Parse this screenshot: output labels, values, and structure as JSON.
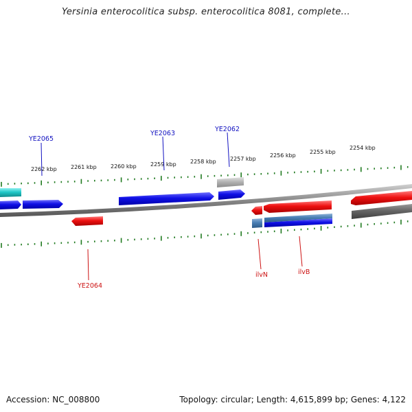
{
  "title": "Yersinia enterocolitica subsp. enterocolitica 8081, complete...",
  "footer": {
    "accession": "Accession: NC_008800",
    "summary": "Topology: circular; Length: 4,615,899 bp; Genes: 4,122"
  },
  "colors": {
    "forward_gene": "#1010e0",
    "reverse_gene": "#ee1111",
    "rna_gene": "#20c8c8",
    "pseudo_gene": "#b4b4b4",
    "other_gene": "#4a7fb5",
    "dark_gene": "#666666",
    "tick": "#1f7a1f",
    "backbone": "#8a8a8a"
  },
  "scale_labels": [
    "2262 kbp",
    "2261 kbp",
    "2260 kbp",
    "2259 kbp",
    "2258 kbp",
    "2257 kbp",
    "2256 kbp",
    "2255 kbp",
    "2254 kbp"
  ],
  "gene_labels": {
    "YE2065": "YE2065",
    "YE2063": "YE2063",
    "YE2062": "YE2062",
    "YE2064": "YE2064",
    "ilvN": "ilvN",
    "ilvB": "ilvB"
  }
}
